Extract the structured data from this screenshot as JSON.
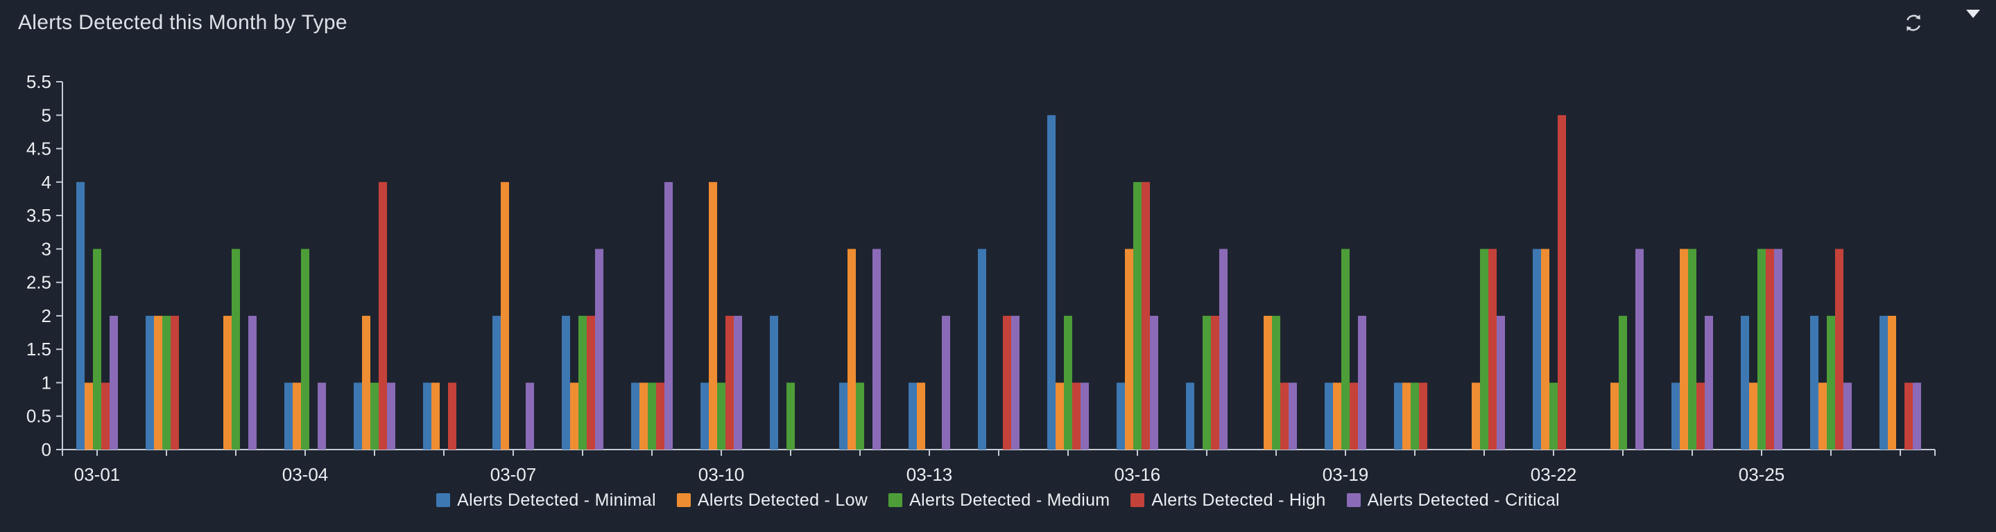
{
  "panel": {
    "background_color": "#1e242f",
    "title_color": "#dde2e9",
    "axis_color": "#c6ccd4",
    "label_color": "#eceff3",
    "icon_color": "#d8dce1"
  },
  "header_icons": [
    {
      "name": "refresh-icon"
    },
    {
      "name": "caret-down-icon"
    }
  ],
  "chart_data": {
    "type": "bar",
    "title": "Alerts Detected this Month by Type",
    "categories": [
      "03-01",
      "03-02",
      "03-03",
      "03-04",
      "03-05",
      "03-06",
      "03-07",
      "03-08",
      "03-09",
      "03-10",
      "03-11",
      "03-12",
      "03-13",
      "03-14",
      "03-15",
      "03-16",
      "03-17",
      "03-18",
      "03-19",
      "03-20",
      "03-21",
      "03-22",
      "03-23",
      "03-24",
      "03-25",
      "03-26",
      "03-27"
    ],
    "x_label_every": 3,
    "x_tick_labels_shown": [
      "03-01",
      "03-04",
      "03-07",
      "03-10",
      "03-13",
      "03-16",
      "03-19",
      "03-22",
      "03-25"
    ],
    "series": [
      {
        "name": "Alerts Detected - Minimal",
        "color": "#3d78b3",
        "values": [
          4,
          2,
          0,
          1,
          1,
          1,
          2,
          2,
          1,
          1,
          2,
          1,
          1,
          3,
          5,
          1,
          1,
          0,
          1,
          1,
          0,
          3,
          0,
          1,
          2,
          2,
          2
        ]
      },
      {
        "name": "Alerts Detected - Low",
        "color": "#ef8d32",
        "values": [
          1,
          2,
          2,
          1,
          2,
          1,
          4,
          1,
          1,
          4,
          0,
          3,
          1,
          0,
          1,
          3,
          0,
          2,
          1,
          1,
          1,
          3,
          1,
          3,
          1,
          1,
          2
        ]
      },
      {
        "name": "Alerts Detected - Medium",
        "color": "#4d9e38",
        "values": [
          3,
          2,
          3,
          3,
          1,
          0,
          0,
          2,
          1,
          1,
          1,
          1,
          0,
          0,
          2,
          4,
          2,
          2,
          3,
          1,
          3,
          1,
          2,
          3,
          3,
          2,
          0
        ]
      },
      {
        "name": "Alerts Detected - High",
        "color": "#c5423a",
        "values": [
          1,
          2,
          0,
          0,
          4,
          1,
          0,
          2,
          1,
          2,
          0,
          0,
          0,
          2,
          1,
          4,
          2,
          1,
          1,
          1,
          3,
          5,
          0,
          1,
          3,
          3,
          1
        ]
      },
      {
        "name": "Alerts Detected - Critical",
        "color": "#8b6bb8",
        "values": [
          2,
          0,
          2,
          1,
          1,
          0,
          1,
          3,
          4,
          2,
          0,
          3,
          2,
          2,
          1,
          2,
          3,
          1,
          2,
          0,
          2,
          0,
          3,
          2,
          3,
          1,
          1
        ]
      }
    ],
    "ylim": [
      0,
      5.5
    ],
    "y_ticks": [
      0,
      0.5,
      1,
      1.5,
      2,
      2.5,
      3,
      3.5,
      4,
      4.5,
      5,
      5.5
    ],
    "grid": false,
    "legend_position": "bottom"
  }
}
